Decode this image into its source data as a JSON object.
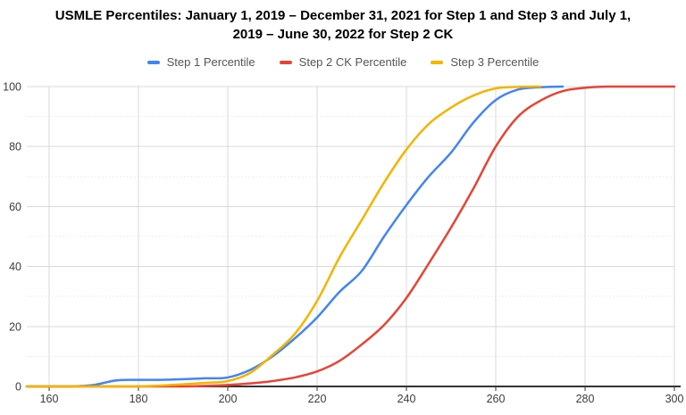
{
  "title": {
    "line1": "USMLE Percentiles: January 1, 2019 – December 31, 2021 for Step 1 and Step 3 and July 1,",
    "line2": "2019 – June 30, 2022 for Step 2 CK"
  },
  "legend": {
    "items": [
      {
        "label": "Step 1 Percentile",
        "color": "#4285F4"
      },
      {
        "label": "Step 2 CK Percentile",
        "color": "#EA4335"
      },
      {
        "label": "Step 3 Percentile",
        "color": "#F4B400"
      }
    ]
  },
  "chart_data": {
    "type": "line",
    "title": "USMLE Percentiles: January 1, 2019 – December 31, 2021 for Step 1 and Step 3 and July 1, 2019 – June 30, 2022 for Step 2 CK",
    "xlabel": "",
    "ylabel": "",
    "x": [
      155,
      160,
      165,
      170,
      175,
      180,
      185,
      190,
      195,
      200,
      205,
      210,
      215,
      220,
      225,
      230,
      235,
      240,
      245,
      250,
      255,
      260,
      265,
      270,
      275,
      280,
      285,
      290,
      295,
      300
    ],
    "series": [
      {
        "name": "Step 1 Percentile",
        "color": "#4285F4",
        "values": [
          0,
          0,
          0,
          0.5,
          2,
          2.2,
          2.2,
          2.4,
          2.7,
          3,
          5.5,
          10,
          16,
          23,
          31.5,
          38.5,
          50,
          60.5,
          70,
          78,
          88,
          95.5,
          99,
          99.8,
          100,
          null,
          null,
          null,
          null,
          null
        ]
      },
      {
        "name": "Step 2 CK Percentile",
        "color": "#EA4335",
        "values": [
          0,
          0,
          0,
          0,
          0,
          0,
          0,
          0,
          0.2,
          0.5,
          1,
          1.8,
          3,
          5,
          8.5,
          14,
          20.5,
          29.5,
          41,
          53,
          66,
          80,
          90,
          95.3,
          98.5,
          99.6,
          100,
          100,
          100,
          100
        ]
      },
      {
        "name": "Step 3 Percentile",
        "color": "#F4B400",
        "values": [
          0,
          0,
          0,
          0,
          0,
          0,
          0.3,
          0.7,
          1.2,
          1.8,
          4.5,
          10.5,
          17.5,
          28.5,
          43,
          55.5,
          68,
          79,
          87.5,
          93,
          97,
          99.4,
          99.9,
          100,
          null,
          null,
          null,
          null,
          null,
          null
        ]
      }
    ],
    "x_ticks": [
      160,
      180,
      200,
      220,
      240,
      260,
      280,
      300
    ],
    "y_ticks": [
      0,
      20,
      40,
      60,
      80,
      100
    ],
    "y_minor_ticks": [
      10,
      30,
      50,
      70,
      90
    ],
    "xlim": [
      155,
      300
    ],
    "ylim": [
      0,
      100
    ],
    "grid": true,
    "legend_position": "top"
  },
  "colors": {
    "background": "#ffffff",
    "title_text": "#000000",
    "legend_text": "#555555",
    "axis_line": "#333333",
    "major_grid": "#d9d9d9",
    "minor_grid": "#e6e6e6",
    "tick_label": "#3c3c3c"
  }
}
